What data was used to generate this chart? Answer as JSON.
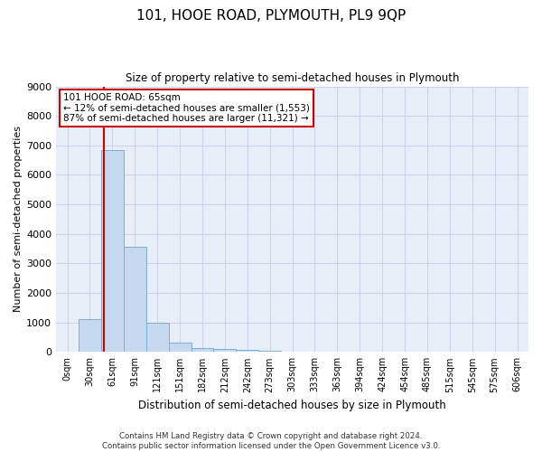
{
  "title": "101, HOOE ROAD, PLYMOUTH, PL9 9QP",
  "subtitle": "Size of property relative to semi-detached houses in Plymouth",
  "xlabel": "Distribution of semi-detached houses by size in Plymouth",
  "ylabel": "Number of semi-detached properties",
  "footer_line1": "Contains HM Land Registry data © Crown copyright and database right 2024.",
  "footer_line2": "Contains public sector information licensed under the Open Government Licence v3.0.",
  "bar_labels": [
    "0sqm",
    "30sqm",
    "61sqm",
    "91sqm",
    "121sqm",
    "151sqm",
    "182sqm",
    "212sqm",
    "242sqm",
    "273sqm",
    "303sqm",
    "333sqm",
    "363sqm",
    "394sqm",
    "424sqm",
    "454sqm",
    "485sqm",
    "515sqm",
    "545sqm",
    "575sqm",
    "606sqm"
  ],
  "bar_values": [
    0,
    1100,
    6850,
    3550,
    1000,
    320,
    130,
    100,
    75,
    55,
    0,
    0,
    0,
    0,
    0,
    0,
    0,
    0,
    0,
    0,
    0
  ],
  "bar_color": "#c5d8f0",
  "bar_edge_color": "#7bafd4",
  "grid_color": "#c8d4e8",
  "bg_color": "#e8eef8",
  "annotation_line1": "101 HOOE ROAD: 65sqm",
  "annotation_line2": "← 12% of semi-detached houses are smaller (1,553)",
  "annotation_line3": "87% of semi-detached houses are larger (11,321) →",
  "marker_bar_index": 2,
  "ylim": [
    0,
    9000
  ],
  "yticks": [
    0,
    1000,
    2000,
    3000,
    4000,
    5000,
    6000,
    7000,
    8000,
    9000
  ]
}
